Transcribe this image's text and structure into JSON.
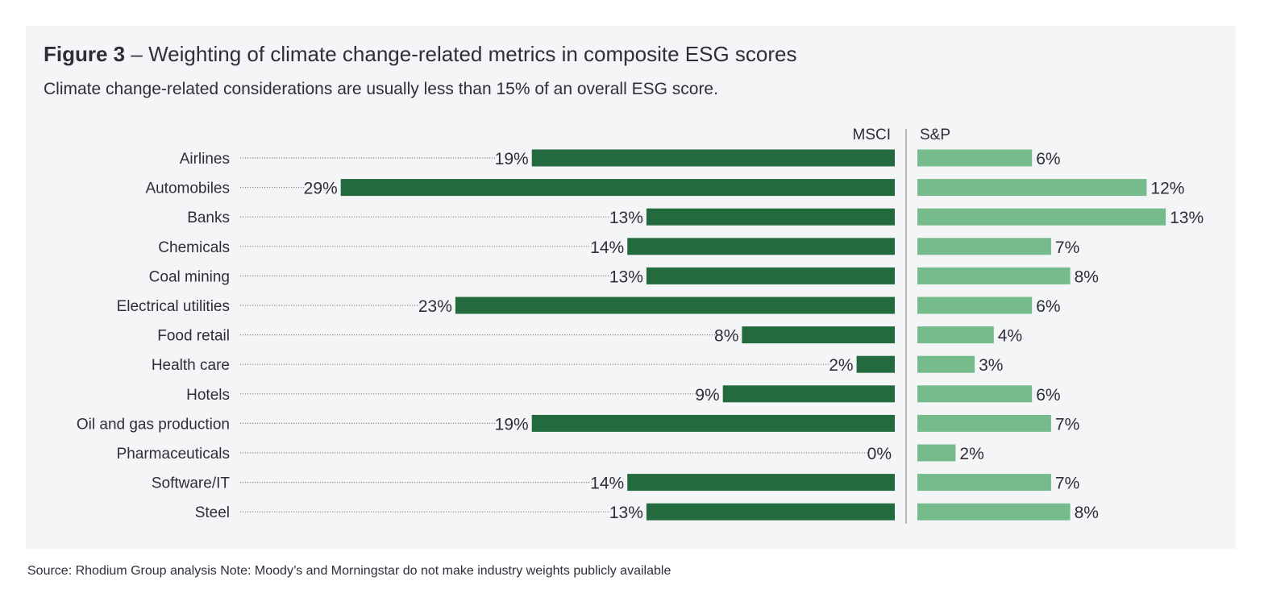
{
  "figure": {
    "label": "Figure 3",
    "separator": " – ",
    "title": "Weighting of climate change-related metrics in composite ESG scores",
    "subtitle": "Climate change-related considerations are usually less than 15% of an overall ESG score.",
    "source": "Source: Rhodium Group analysis Note: Moody’s and Morningstar do not make industry weights publicly available"
  },
  "colors": {
    "panel_bg": "#f4f5f6",
    "msci_bar": "#236a3f",
    "sp_bar": "#76bb8c",
    "text": "#2e2e38",
    "dots": "#8a8a8a",
    "divider": "#8c8c8c"
  },
  "chart_data": {
    "type": "bar",
    "orientation": "horizontal",
    "unit": "%",
    "categories": [
      "Airlines",
      "Automobiles",
      "Banks",
      "Chemicals",
      "Coal mining",
      "Electrical utilities",
      "Food retail",
      "Health care",
      "Hotels",
      "Oil and gas production",
      "Pharmaceuticals",
      "Software/IT",
      "Steel"
    ],
    "series": [
      {
        "name": "MSCI",
        "values": [
          19,
          29,
          13,
          14,
          13,
          23,
          8,
          2,
          9,
          19,
          0,
          14,
          13
        ]
      },
      {
        "name": "S&P",
        "values": [
          6,
          12,
          13,
          7,
          8,
          6,
          4,
          3,
          6,
          7,
          2,
          7,
          8
        ]
      }
    ],
    "title": "Figure 3 – Weighting of climate change-related metrics in composite ESG scores",
    "legend": "column headers above each panel",
    "grid": false
  }
}
